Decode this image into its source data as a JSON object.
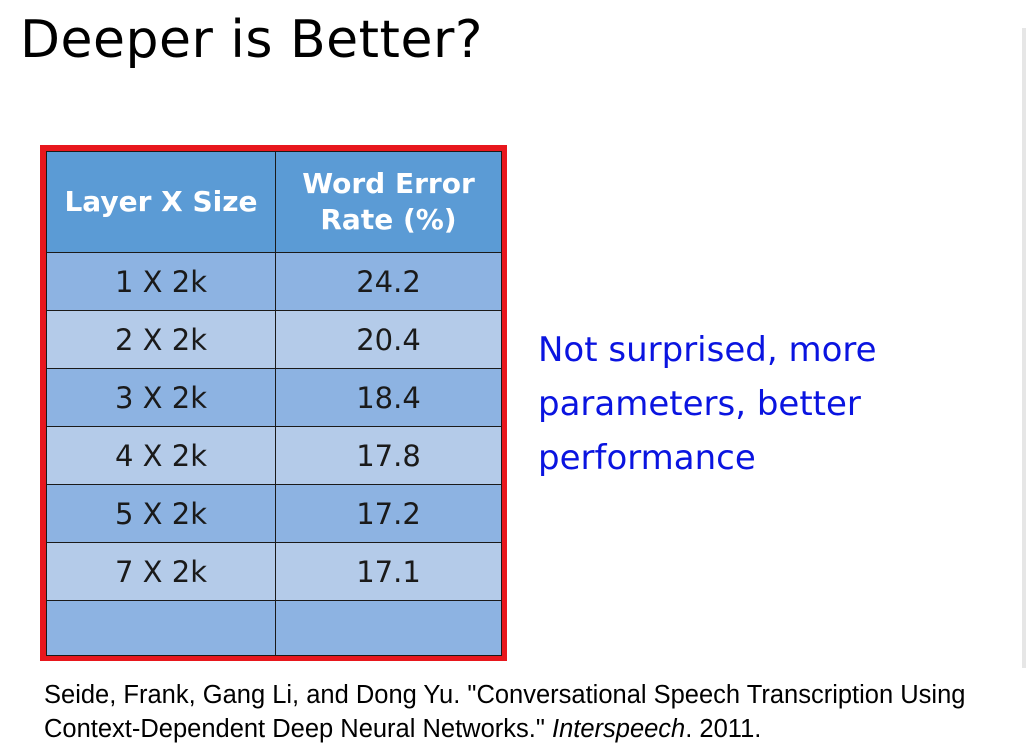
{
  "slide": {
    "title": "Deeper is Better?"
  },
  "table": {
    "headers": [
      "Layer X Size",
      "Word Error Rate (%)"
    ],
    "rows": [
      {
        "layers": "1 X 2k",
        "wer": "24.2"
      },
      {
        "layers": "2 X 2k",
        "wer": "20.4"
      },
      {
        "layers": "3 X 2k",
        "wer": "18.4"
      },
      {
        "layers": "4 X 2k",
        "wer": "17.8"
      },
      {
        "layers": "5 X 2k",
        "wer": "17.2"
      },
      {
        "layers": "7 X 2k",
        "wer": "17.1"
      },
      {
        "layers": "",
        "wer": ""
      }
    ]
  },
  "note": {
    "line1": "Not surprised, more",
    "line2": "parameters, better",
    "line3": "performance"
  },
  "citation": {
    "text_before": "Seide, Frank, Gang Li, and Dong Yu. \"Conversational Speech Transcription Using Context-Dependent Deep Neural Networks.\" ",
    "venue": "Interspeech",
    "text_after": ". 2011."
  },
  "colors": {
    "header_blue": "#5b9bd5",
    "row_dark": "#8db3e2",
    "row_light": "#b4cbe9",
    "frame_red": "#e8171d",
    "note_blue": "#0a14e0"
  }
}
